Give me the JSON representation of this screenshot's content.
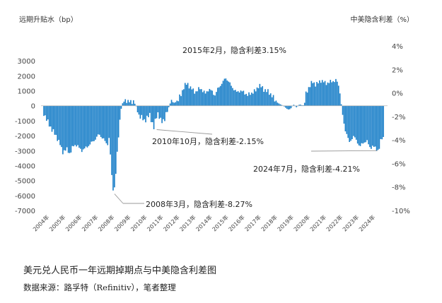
{
  "chart_data": {
    "type": "bar",
    "title": "美元兑人民币一年远期掉期点与中美隐含利差图",
    "source": "数据来源：路孚特（Refinitiv），笔者整理",
    "ylabel_left": "远期升贴水（bp）",
    "ylabel_right": "中美隐含利差（%）",
    "ylim_left": [
      -7000,
      4000
    ],
    "yticks_left": [
      "3000",
      "2000",
      "1000",
      "0",
      "-1000",
      "-2000",
      "-3000",
      "-4000",
      "-5000",
      "-6000",
      "-7000"
    ],
    "ylim_right": [
      -10,
      4
    ],
    "yticks_right": [
      "4%",
      "2%",
      "0%",
      "-2%",
      "-4%",
      "-6%",
      "-8%",
      "-10%"
    ],
    "x_range": [
      2004.0,
      2025.0
    ],
    "xticks": [
      "2004年",
      "2005年",
      "2006年",
      "2007年",
      "2008年",
      "2009年",
      "2010年",
      "2011年",
      "2012年",
      "2013年",
      "2014年",
      "2015年",
      "2016年",
      "2017年",
      "2018年",
      "2019年",
      "2020年",
      "2021年",
      "2022年",
      "2023年",
      "2024年"
    ],
    "bar_color": "#1a7fc8",
    "series": [
      {
        "name": "远期升贴水（bp）",
        "keypoints": [
          [
            2004.0,
            -500
          ],
          [
            2004.2,
            -1000
          ],
          [
            2004.5,
            -1600
          ],
          [
            2004.8,
            -2100
          ],
          [
            2005.0,
            -2600
          ],
          [
            2005.15,
            -3100
          ],
          [
            2005.4,
            -2900
          ],
          [
            2005.6,
            -3200
          ],
          [
            2005.8,
            -2700
          ],
          [
            2006.0,
            -2600
          ],
          [
            2006.3,
            -3000
          ],
          [
            2006.6,
            -2800
          ],
          [
            2006.9,
            -2500
          ],
          [
            2007.1,
            -2300
          ],
          [
            2007.4,
            -1900
          ],
          [
            2007.7,
            -2300
          ],
          [
            2007.9,
            -2600
          ],
          [
            2008.0,
            -2200
          ],
          [
            2008.1,
            -3500
          ],
          [
            2008.2,
            -5300
          ],
          [
            2008.3,
            -5800
          ],
          [
            2008.4,
            -4800
          ],
          [
            2008.5,
            -3200
          ],
          [
            2008.6,
            -1800
          ],
          [
            2008.7,
            -500
          ],
          [
            2008.8,
            100
          ],
          [
            2008.9,
            300
          ],
          [
            2009.0,
            400
          ],
          [
            2009.2,
            250
          ],
          [
            2009.5,
            300
          ],
          [
            2009.7,
            -100
          ],
          [
            2009.85,
            -700
          ],
          [
            2010.0,
            -800
          ],
          [
            2010.2,
            -1000
          ],
          [
            2010.5,
            -600
          ],
          [
            2010.75,
            -1500
          ],
          [
            2010.9,
            -700
          ],
          [
            2011.0,
            -500
          ],
          [
            2011.2,
            -1100
          ],
          [
            2011.4,
            -900
          ],
          [
            2011.6,
            -300
          ],
          [
            2011.8,
            300
          ],
          [
            2012.0,
            200
          ],
          [
            2012.2,
            300
          ],
          [
            2012.4,
            700
          ],
          [
            2012.6,
            1300
          ],
          [
            2012.8,
            1500
          ],
          [
            2013.0,
            1200
          ],
          [
            2013.3,
            900
          ],
          [
            2013.6,
            1200
          ],
          [
            2013.9,
            800
          ],
          [
            2014.1,
            1100
          ],
          [
            2014.3,
            1000
          ],
          [
            2014.5,
            700
          ],
          [
            2014.7,
            1200
          ],
          [
            2015.0,
            1600
          ],
          [
            2015.15,
            1900
          ],
          [
            2015.4,
            1500
          ],
          [
            2015.6,
            1200
          ],
          [
            2015.8,
            900
          ],
          [
            2016.0,
            1000
          ],
          [
            2016.3,
            900
          ],
          [
            2016.5,
            700
          ],
          [
            2016.8,
            900
          ],
          [
            2017.0,
            1000
          ],
          [
            2017.2,
            1400
          ],
          [
            2017.5,
            1100
          ],
          [
            2017.8,
            900
          ],
          [
            2018.0,
            700
          ],
          [
            2018.2,
            300
          ],
          [
            2018.5,
            100
          ],
          [
            2018.7,
            0
          ],
          [
            2018.9,
            -200
          ],
          [
            2019.1,
            -300
          ],
          [
            2019.3,
            100
          ],
          [
            2019.5,
            -100
          ],
          [
            2019.7,
            100
          ],
          [
            2019.9,
            0
          ],
          [
            2020.0,
            200
          ],
          [
            2020.1,
            900
          ],
          [
            2020.3,
            1300
          ],
          [
            2020.5,
            1600
          ],
          [
            2020.7,
            1400
          ],
          [
            2021.0,
            1700
          ],
          [
            2021.3,
            1500
          ],
          [
            2021.6,
            1600
          ],
          [
            2021.9,
            1700
          ],
          [
            2022.0,
            1600
          ],
          [
            2022.15,
            1100
          ],
          [
            2022.3,
            -400
          ],
          [
            2022.45,
            -1500
          ],
          [
            2022.6,
            -1900
          ],
          [
            2022.75,
            -2500
          ],
          [
            2022.9,
            -2200
          ],
          [
            2023.0,
            -2000
          ],
          [
            2023.2,
            -2400
          ],
          [
            2023.4,
            -2700
          ],
          [
            2023.6,
            -2500
          ],
          [
            2023.8,
            -2300
          ],
          [
            2024.0,
            -2800
          ],
          [
            2024.2,
            -2700
          ],
          [
            2024.4,
            -2900
          ],
          [
            2024.55,
            -3000
          ],
          [
            2024.7,
            -2200
          ],
          [
            2024.85,
            -2100
          ]
        ]
      }
    ],
    "annotations": [
      {
        "text": "2015年2月，隐含利差3.15%",
        "x": 2015.1,
        "value": 1900
      },
      {
        "text": "2010年10月，隐含利差-2.15%",
        "x": 2010.75,
        "value": -1500
      },
      {
        "text": "2024年7月，隐含利差-4.21%",
        "x": 2024.55,
        "value": -3000
      },
      {
        "text": "2008年3月，隐含利差-8.27%",
        "x": 2008.25,
        "value": -5800
      }
    ]
  }
}
